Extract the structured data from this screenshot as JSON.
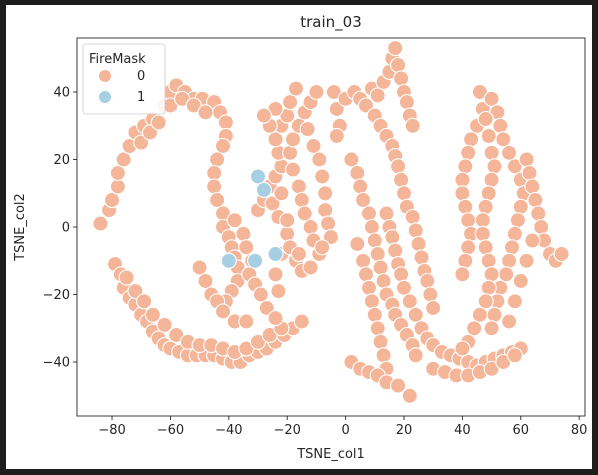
{
  "chart_data": {
    "type": "scatter",
    "title": "train_03",
    "xlabel": "TSNE_col1",
    "ylabel": "TSNE_col2",
    "xlim": [
      -92,
      82
    ],
    "ylim": [
      -56,
      56
    ],
    "xticks": [
      -80,
      -60,
      -40,
      -20,
      0,
      20,
      40,
      60,
      80
    ],
    "yticks": [
      -40,
      -20,
      0,
      20,
      40
    ],
    "grid": false,
    "legend": {
      "title": "FireMask",
      "placement": "top-left",
      "entries": [
        {
          "label": "0",
          "color": "#f4b599"
        },
        {
          "label": "1",
          "color": "#a6cfe3"
        }
      ]
    },
    "series": [
      {
        "name": "0",
        "color": "#f4b599",
        "points": [
          [
            -84,
            1
          ],
          [
            -81,
            5
          ],
          [
            -80,
            8
          ],
          [
            -78,
            12
          ],
          [
            -78,
            16
          ],
          [
            -76,
            20
          ],
          [
            -74,
            24
          ],
          [
            -72,
            28
          ],
          [
            -69,
            30
          ],
          [
            -66,
            32
          ],
          [
            -62,
            36
          ],
          [
            -60,
            40
          ],
          [
            -58,
            42
          ],
          [
            -55,
            40
          ],
          [
            -52,
            38
          ],
          [
            -49,
            38
          ],
          [
            -45,
            37
          ],
          [
            -43,
            34
          ],
          [
            -41,
            31
          ],
          [
            -41,
            27
          ],
          [
            -42,
            24
          ],
          [
            -44,
            20
          ],
          [
            -45,
            16
          ],
          [
            -45,
            12
          ],
          [
            -44,
            8
          ],
          [
            -42,
            4
          ],
          [
            -42,
            0
          ],
          [
            -40,
            -3
          ],
          [
            -39,
            -6
          ],
          [
            -38,
            -9
          ],
          [
            -37,
            -12
          ],
          [
            -37,
            -16
          ],
          [
            -39,
            -19
          ],
          [
            -41,
            -22
          ],
          [
            -70,
            25
          ],
          [
            -67,
            28
          ],
          [
            -64,
            31
          ],
          [
            -60,
            36
          ],
          [
            -56,
            38
          ],
          [
            -52,
            36
          ],
          [
            -48,
            34
          ],
          [
            -79,
            -11
          ],
          [
            -77,
            -14
          ],
          [
            -76,
            -18
          ],
          [
            -74,
            -21
          ],
          [
            -72,
            -23
          ],
          [
            -70,
            -26
          ],
          [
            -68,
            -28
          ],
          [
            -66,
            -31
          ],
          [
            -64,
            -33
          ],
          [
            -62,
            -35
          ],
          [
            -60,
            -36
          ],
          [
            -57,
            -37
          ],
          [
            -54,
            -38
          ],
          [
            -51,
            -38
          ],
          [
            -48,
            -38
          ],
          [
            -45,
            -38
          ],
          [
            -42,
            -39
          ],
          [
            -39,
            -40
          ],
          [
            -36,
            -40
          ],
          [
            -33,
            -38
          ],
          [
            -30,
            -37
          ],
          [
            -27,
            -36
          ],
          [
            -24,
            -34
          ],
          [
            -21,
            -32
          ],
          [
            -18,
            -30
          ],
          [
            -15,
            -28
          ],
          [
            -75,
            -15
          ],
          [
            -72,
            -19
          ],
          [
            -69,
            -22
          ],
          [
            -66,
            -26
          ],
          [
            -62,
            -29
          ],
          [
            -58,
            -32
          ],
          [
            -54,
            -34
          ],
          [
            -50,
            -35
          ],
          [
            -46,
            -35
          ],
          [
            -42,
            -36
          ],
          [
            -38,
            -37
          ],
          [
            -34,
            -36
          ],
          [
            -30,
            -34
          ],
          [
            -26,
            -32
          ],
          [
            -22,
            -30
          ],
          [
            -50,
            -12
          ],
          [
            -48,
            -16
          ],
          [
            -46,
            -20
          ],
          [
            -44,
            -22
          ],
          [
            -42,
            -25
          ],
          [
            -38,
            -28
          ],
          [
            -34,
            -28
          ],
          [
            -38,
            2
          ],
          [
            -35,
            -2
          ],
          [
            -34,
            -6
          ],
          [
            -32,
            -10
          ],
          [
            -33,
            -14
          ],
          [
            -31,
            -17
          ],
          [
            -29,
            -20
          ],
          [
            -27,
            -24
          ],
          [
            -24,
            -27
          ],
          [
            -23,
            -19
          ],
          [
            -24,
            -14
          ],
          [
            -22,
            -8
          ],
          [
            -30,
            5
          ],
          [
            -28,
            8
          ],
          [
            -26,
            12
          ],
          [
            -24,
            15
          ],
          [
            -22,
            18
          ],
          [
            -23,
            22
          ],
          [
            -24,
            26
          ],
          [
            -22,
            30
          ],
          [
            -20,
            33
          ],
          [
            -19,
            37
          ],
          [
            -17,
            41
          ],
          [
            -25,
            7
          ],
          [
            -23,
            3
          ],
          [
            -20,
            -2
          ],
          [
            -19,
            -6
          ],
          [
            -17,
            -10
          ],
          [
            -15,
            -13
          ],
          [
            -16,
            -8
          ],
          [
            -19,
            22
          ],
          [
            -18,
            17
          ],
          [
            -16,
            12
          ],
          [
            -15,
            8
          ],
          [
            -14,
            4
          ],
          [
            -12,
            0
          ],
          [
            -11,
            -4
          ],
          [
            -9,
            -8
          ],
          [
            -12,
            -12
          ],
          [
            -20,
            2
          ],
          [
            -22,
            10
          ],
          [
            -18,
            26
          ],
          [
            -16,
            30
          ],
          [
            -14,
            34
          ],
          [
            -12,
            37
          ],
          [
            -10,
            40
          ],
          [
            -13,
            29
          ],
          [
            -11,
            24
          ],
          [
            -9,
            20
          ],
          [
            -8,
            15
          ],
          [
            -7,
            10
          ],
          [
            -7,
            5
          ],
          [
            -6,
            1
          ],
          [
            -5,
            -3
          ],
          [
            -8,
            -6
          ],
          [
            -26,
            30
          ],
          [
            -24,
            35
          ],
          [
            -28,
            33
          ],
          [
            -4,
            40
          ],
          [
            -3,
            35
          ],
          [
            -2,
            30
          ],
          [
            -3,
            27
          ],
          [
            0,
            38
          ],
          [
            3,
            40
          ],
          [
            5,
            38
          ],
          [
            7,
            36
          ],
          [
            9,
            41
          ],
          [
            11,
            39
          ],
          [
            13,
            43
          ],
          [
            15,
            46
          ],
          [
            16,
            50
          ],
          [
            17,
            53
          ],
          [
            18,
            48
          ],
          [
            19,
            44
          ],
          [
            20,
            40
          ],
          [
            21,
            37
          ],
          [
            22,
            33
          ],
          [
            23,
            30
          ],
          [
            10,
            33
          ],
          [
            12,
            30
          ],
          [
            14,
            27
          ],
          [
            16,
            24
          ],
          [
            17,
            21
          ],
          [
            18,
            18
          ],
          [
            19,
            14
          ],
          [
            20,
            10
          ],
          [
            21,
            6
          ],
          [
            23,
            3
          ],
          [
            24,
            -1
          ],
          [
            25,
            -5
          ],
          [
            26,
            -9
          ],
          [
            27,
            -13
          ],
          [
            28,
            -16
          ],
          [
            29,
            -20
          ],
          [
            30,
            -24
          ],
          [
            2,
            20
          ],
          [
            4,
            16
          ],
          [
            5,
            12
          ],
          [
            6,
            8
          ],
          [
            8,
            4
          ],
          [
            9,
            0
          ],
          [
            10,
            -4
          ],
          [
            11,
            -8
          ],
          [
            12,
            -12
          ],
          [
            13,
            -16
          ],
          [
            14,
            -20
          ],
          [
            16,
            -23
          ],
          [
            17,
            -26
          ],
          [
            19,
            -29
          ],
          [
            21,
            -32
          ],
          [
            23,
            -35
          ],
          [
            24,
            -38
          ],
          [
            14,
            4
          ],
          [
            15,
            0
          ],
          [
            16,
            -3
          ],
          [
            17,
            -7
          ],
          [
            18,
            -11
          ],
          [
            19,
            -14
          ],
          [
            20,
            -18
          ],
          [
            22,
            -22
          ],
          [
            24,
            -26
          ],
          [
            26,
            -30
          ],
          [
            28,
            -33
          ],
          [
            30,
            -35
          ],
          [
            33,
            -37
          ],
          [
            36,
            -38
          ],
          [
            39,
            -39
          ],
          [
            42,
            -40
          ],
          [
            45,
            -41
          ],
          [
            48,
            -40
          ],
          [
            51,
            -39
          ],
          [
            54,
            -38
          ],
          [
            57,
            -37
          ],
          [
            60,
            -36
          ],
          [
            4,
            -5
          ],
          [
            6,
            -10
          ],
          [
            7,
            -14
          ],
          [
            8,
            -18
          ],
          [
            9,
            -22
          ],
          [
            10,
            -26
          ],
          [
            11,
            -30
          ],
          [
            12,
            -34
          ],
          [
            13,
            -38
          ],
          [
            14,
            -42
          ],
          [
            2,
            -40
          ],
          [
            5,
            -42
          ],
          [
            8,
            -43
          ],
          [
            11,
            -44
          ],
          [
            14,
            -46
          ],
          [
            18,
            -47
          ],
          [
            22,
            -50
          ],
          [
            30,
            -42
          ],
          [
            34,
            -43
          ],
          [
            38,
            -44
          ],
          [
            42,
            -44
          ],
          [
            46,
            -43
          ],
          [
            50,
            -42
          ],
          [
            54,
            -40
          ],
          [
            58,
            -38
          ],
          [
            46,
            40
          ],
          [
            47,
            35
          ],
          [
            45,
            30
          ],
          [
            43,
            26
          ],
          [
            42,
            22
          ],
          [
            41,
            18
          ],
          [
            40,
            14
          ],
          [
            40,
            10
          ],
          [
            41,
            6
          ],
          [
            42,
            2
          ],
          [
            43,
            -2
          ],
          [
            42,
            -6
          ],
          [
            41,
            -10
          ],
          [
            40,
            -14
          ],
          [
            50,
            38
          ],
          [
            52,
            34
          ],
          [
            53,
            30
          ],
          [
            54,
            26
          ],
          [
            56,
            22
          ],
          [
            58,
            18
          ],
          [
            60,
            14
          ],
          [
            61,
            10
          ],
          [
            60,
            6
          ],
          [
            59,
            2
          ],
          [
            58,
            -2
          ],
          [
            57,
            -6
          ],
          [
            56,
            -10
          ],
          [
            55,
            -14
          ],
          [
            53,
            -18
          ],
          [
            52,
            -22
          ],
          [
            51,
            -26
          ],
          [
            50,
            -30
          ],
          [
            48,
            32
          ],
          [
            49,
            27
          ],
          [
            50,
            22
          ],
          [
            51,
            18
          ],
          [
            50,
            14
          ],
          [
            49,
            10
          ],
          [
            48,
            6
          ],
          [
            47,
            2
          ],
          [
            47,
            -2
          ],
          [
            48,
            -6
          ],
          [
            49,
            -10
          ],
          [
            50,
            -14
          ],
          [
            49,
            -18
          ],
          [
            48,
            -22
          ],
          [
            46,
            -26
          ],
          [
            44,
            -30
          ],
          [
            42,
            -34
          ],
          [
            40,
            -36
          ],
          [
            62,
            20
          ],
          [
            63,
            16
          ],
          [
            64,
            12
          ],
          [
            65,
            8
          ],
          [
            66,
            4
          ],
          [
            67,
            0
          ],
          [
            68,
            -4
          ],
          [
            70,
            -8
          ],
          [
            72,
            -10
          ],
          [
            74,
            -8
          ],
          [
            64,
            -4
          ],
          [
            62,
            -10
          ],
          [
            60,
            -16
          ],
          [
            58,
            -22
          ],
          [
            56,
            -28
          ]
        ]
      },
      {
        "name": "1",
        "color": "#a6cfe3",
        "points": [
          [
            -30,
            15
          ],
          [
            -28,
            11
          ],
          [
            -40,
            -10
          ],
          [
            -31,
            -10
          ],
          [
            -24,
            -8
          ]
        ]
      }
    ]
  }
}
